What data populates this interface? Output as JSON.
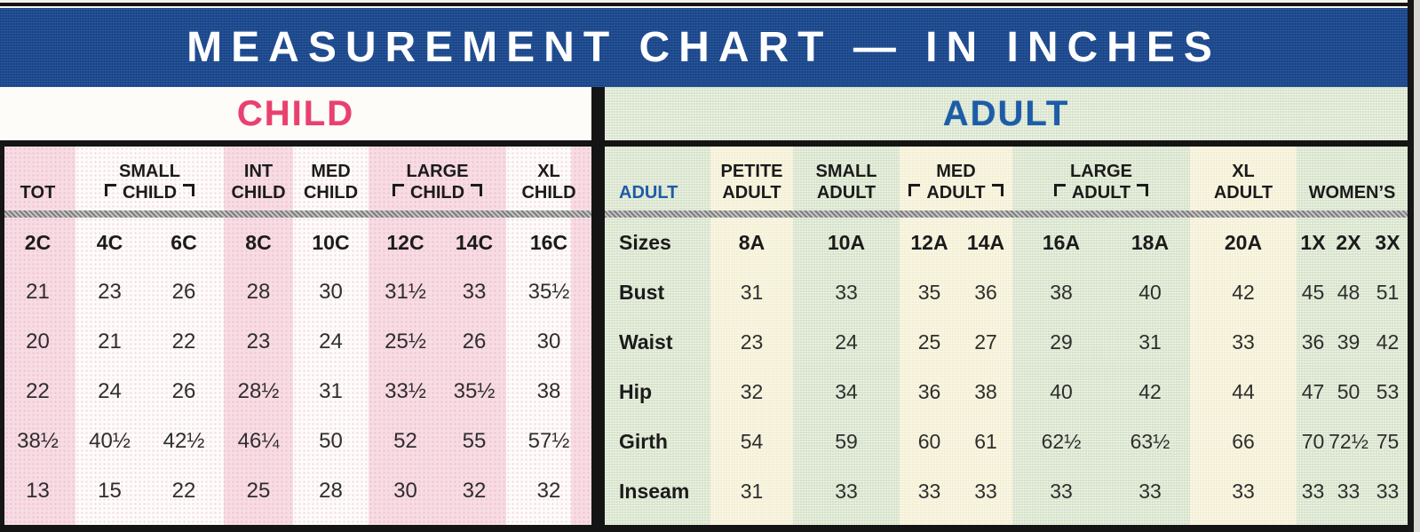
{
  "title": "MEASUREMENT CHART — IN INCHES",
  "child": {
    "section_label": "CHILD",
    "groups": [
      {
        "top": "",
        "bottom": "TOT"
      },
      {
        "top": "SMALL",
        "bottom": "CHILD"
      },
      {
        "top": "INT",
        "bottom": "CHILD"
      },
      {
        "top": "MED",
        "bottom": "CHILD"
      },
      {
        "top": "LARGE",
        "bottom": "CHILD"
      },
      {
        "top": "XL",
        "bottom": "CHILD"
      }
    ],
    "sizes": [
      "2C",
      "4C",
      "6C",
      "8C",
      "10C",
      "12C",
      "14C",
      "16C"
    ],
    "bust": [
      "21",
      "23",
      "26",
      "28",
      "30",
      "31½",
      "33",
      "35½"
    ],
    "waist": [
      "20",
      "21",
      "22",
      "23",
      "24",
      "25½",
      "26",
      "30"
    ],
    "hip": [
      "22",
      "24",
      "26",
      "28½",
      "31",
      "33½",
      "35½",
      "38"
    ],
    "girth": [
      "38½",
      "40½",
      "42½",
      "46¼",
      "50",
      "52",
      "55",
      "57½"
    ],
    "inseam": [
      "13",
      "15",
      "22",
      "25",
      "28",
      "30",
      "32",
      "32"
    ]
  },
  "adult": {
    "section_label": "ADULT",
    "corner_label": "ADULT",
    "groups": [
      {
        "top": "PETITE",
        "bottom": "ADULT"
      },
      {
        "top": "SMALL",
        "bottom": "ADULT"
      },
      {
        "top": "MED",
        "bottom": "ADULT"
      },
      {
        "top": "LARGE",
        "bottom": "ADULT"
      },
      {
        "top": "XL",
        "bottom": "ADULT"
      },
      {
        "top": "",
        "bottom": "WOMEN’S"
      }
    ],
    "row_labels": [
      "Sizes",
      "Bust",
      "Waist",
      "Hip",
      "Girth",
      "Inseam"
    ],
    "sizes": [
      "8A",
      "10A",
      "12A",
      "14A",
      "16A",
      "18A",
      "20A",
      "1X",
      "2X",
      "3X"
    ],
    "bust": [
      "31",
      "33",
      "35",
      "36",
      "38",
      "40",
      "42",
      "45",
      "48",
      "51"
    ],
    "waist": [
      "23",
      "24",
      "25",
      "27",
      "29",
      "31",
      "33",
      "36",
      "39",
      "42"
    ],
    "hip": [
      "32",
      "34",
      "36",
      "38",
      "40",
      "42",
      "44",
      "47",
      "50",
      "53"
    ],
    "girth": [
      "54",
      "59",
      "60",
      "61",
      "62½",
      "63½",
      "66",
      "70",
      "72½",
      "75"
    ],
    "inseam": [
      "31",
      "33",
      "33",
      "33",
      "33",
      "33",
      "33",
      "33",
      "33",
      "33"
    ]
  },
  "colors": {
    "banner_blue": "#1c4a91",
    "child_heading_pink": "#e8416f",
    "adult_heading_blue": "#1d5ca6",
    "pink_stripe": "#f7dce4",
    "green_background": "#d6e2c9",
    "cream_stripe": "#f4efd3",
    "rule_black": "#141414",
    "rule_gray": "#9a9a9a"
  }
}
